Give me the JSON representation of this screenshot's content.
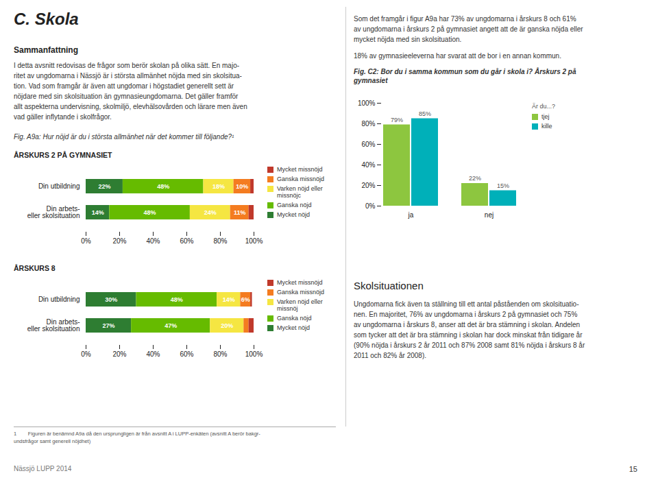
{
  "title": "C. Skola",
  "annotations": [
    "Sammanfattning",
    "I detta avsnitt redovisas de frågor som berör skolan på olika sätt. En majo-\nritet av ungdomarna i Nässjö är i största allmänhet nöjda med sin skolsitua-\ntion. Vad som framgår är även att ungdomar i högstadiet generellt sett är\nnöjdare med sin skolsituation än gymnasieungdomarna. Det gäller framför\nallt aspekterna undervisning, skolmiljö, elevhälsovården och lärare men även\nvad gäller inflytande i skolfrågor.",
    "Fig. A9a: Hur nöjd är du i största allmänhet när det kommer till följande?¹",
    "Som det framgår i figur A9a har 73% av ungdomarna i årskurs 8 och 61%\nav ungdomarna i årskurs 2 på gymnasiet angett att de är ganska nöjda eller\nmycket nöjda med sin skolsituation.",
    "18% av gymnasieeleverna har svarat att de bor i en annan kommun.",
    "Skolsituationen",
    "Ungdomarna fick även ta ställning till ett antal påståenden om skolsituatio-\nnen. En majoritet, 76% av ungdomarna i årskurs 2 på gymnasiet och 75%\nav ungdomarna i årskurs 8, anser att det är bra stämning i skolan. Andelen\nsom tycker att det är bra stämning i skolan har dock minskat från tidigare år\n(90% nöjda i årskurs 2 år 2011 och 87% 2008 samt 81% nöjda i årskurs 8 år\n2011 och 82% år 2008).",
    "1        Figuren är benämnd A9a då den ursprungligen är från avsnitt A i LUPP-enkäten (avsnitt A berör bakgr-\nundsfrågor samt generell nöjdhet)",
    "Nässjö LUPP 2014",
    "15"
  ],
  "chart_data": [
    {
      "type": "bar",
      "title": "ÅRSKURS 2 PÅ GYMNASIET",
      "orientation": "horizontal",
      "stacked": true,
      "data_labels": true,
      "legend": "right",
      "categories": [
        "Din utbildning",
        "Din arbets-\neller skolsituation"
      ],
      "series": [
        {
          "name": "Mycket nöjd",
          "color": "#2e7d32",
          "values": [
            22,
            14
          ],
          "value_labels": [
            "22%",
            "14%"
          ]
        },
        {
          "name": "Ganska nöjd",
          "color": "#66bb00",
          "values": [
            48,
            48
          ],
          "value_labels": [
            "48%",
            "48%"
          ]
        },
        {
          "name": "Varken nöjd eller missnöjc",
          "color": "#f5e642",
          "values": [
            18,
            24
          ],
          "value_labels": [
            "18%",
            "24%"
          ]
        },
        {
          "name": "Ganska missnöjd",
          "color": "#f47c20",
          "values": [
            10,
            11
          ],
          "value_labels": [
            "10%",
            "11%"
          ]
        },
        {
          "name": "Mycket missnöjd",
          "color": "#c0392b",
          "values": [
            2,
            3
          ],
          "value_labels": [
            null,
            null
          ]
        }
      ],
      "xlim": [
        0,
        100
      ],
      "xticks": [
        {
          "value": 0,
          "label": "0%"
        },
        {
          "value": 20,
          "label": "20%"
        },
        {
          "value": 40,
          "label": "40%"
        },
        {
          "value": 60,
          "label": "60%"
        },
        {
          "value": 80,
          "label": "80%"
        },
        {
          "value": 100,
          "label": "100%"
        }
      ]
    },
    {
      "type": "bar",
      "title": "ÅRSKURS 8",
      "orientation": "horizontal",
      "stacked": true,
      "data_labels": true,
      "legend": "right",
      "categories": [
        "Din utbildning",
        "Din arbets-\neller skolsituation"
      ],
      "series": [
        {
          "name": "Mycket nöjd",
          "color": "#2e7d32",
          "values": [
            30,
            27
          ],
          "value_labels": [
            "30%",
            "27%"
          ]
        },
        {
          "name": "Ganska nöjd",
          "color": "#66bb00",
          "values": [
            48,
            47
          ],
          "value_labels": [
            "48%",
            "47%"
          ]
        },
        {
          "name": "Varken nöjd eller missnöj",
          "color": "#f5e642",
          "values": [
            14,
            20
          ],
          "value_labels": [
            "14%",
            "20%"
          ]
        },
        {
          "name": "Ganska missnöjd",
          "color": "#f47c20",
          "values": [
            6,
            3
          ],
          "value_labels": [
            "6%",
            null
          ]
        },
        {
          "name": "Mycket missnöjd",
          "color": "#c0392b",
          "values": [
            1,
            3
          ],
          "value_labels": [
            null,
            null
          ]
        }
      ],
      "xlim": [
        0,
        100
      ],
      "xticks": [
        {
          "value": 0,
          "label": "0%"
        },
        {
          "value": 20,
          "label": "20%"
        },
        {
          "value": 40,
          "label": "40%"
        },
        {
          "value": 60,
          "label": "60%"
        },
        {
          "value": 80,
          "label": "80%"
        },
        {
          "value": 100,
          "label": "100%"
        }
      ]
    },
    {
      "type": "bar",
      "title": "Fig. C2: Bor du i samma kommun som du går i skola i? Årskurs 2 på\ngymnasiet",
      "data_labels": true,
      "legend": "right",
      "annotations": [
        "Är du...?"
      ],
      "categories": [
        "ja",
        "nej"
      ],
      "series": [
        {
          "name": "tjej",
          "color": "#8dc63f",
          "values": [
            79,
            22
          ],
          "value_labels": [
            "79%",
            "22%"
          ]
        },
        {
          "name": "kille",
          "color": "#00b0b9",
          "values": [
            85,
            15
          ],
          "value_labels": [
            "85%",
            "15%"
          ]
        }
      ],
      "ylim": [
        0,
        100
      ],
      "yticks": [
        {
          "value": 0,
          "label": "0%"
        },
        {
          "value": 20,
          "label": "20%"
        },
        {
          "value": 40,
          "label": "40%"
        },
        {
          "value": 60,
          "label": "60%"
        },
        {
          "value": 80,
          "label": "80%"
        },
        {
          "value": 100,
          "label": "100%"
        }
      ]
    }
  ]
}
